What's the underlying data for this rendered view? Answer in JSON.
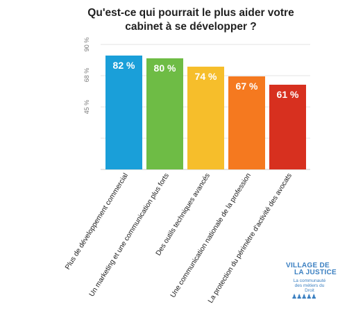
{
  "title_line1": "Qu'est-ce qui pourrait le plus aider votre",
  "title_line2": "cabinet à se développer ?",
  "chart_data": {
    "type": "bar",
    "title": "Qu'est-ce qui pourrait le plus aider votre cabinet à se développer ?",
    "categories": [
      "Plus de développement commercial",
      "Un marketing et une communication plus forts",
      "Des outils techniques avancés",
      "Une communication nationale de la profession",
      "La protection du périmètre d'activité des avocats"
    ],
    "values": [
      82,
      80,
      74,
      67,
      61
    ],
    "value_labels": [
      "82 %",
      "80 %",
      "74 %",
      "67 %",
      "61 %"
    ],
    "colors": [
      "#1a9fd9",
      "#6ebc45",
      "#f6be2b",
      "#f5791f",
      "#d7301f"
    ],
    "ytick_labels": [
      "90 %",
      "68 %",
      "45 %"
    ],
    "ytick_values": [
      90,
      68,
      45
    ],
    "ylim": [
      0,
      90
    ],
    "grid": true
  },
  "logo": {
    "line1": "VILLAGE DE",
    "line2": "LA JUSTICE",
    "tagline": "La communauté des métiers du Droit",
    "figures": "♟♟♟♟♟"
  }
}
